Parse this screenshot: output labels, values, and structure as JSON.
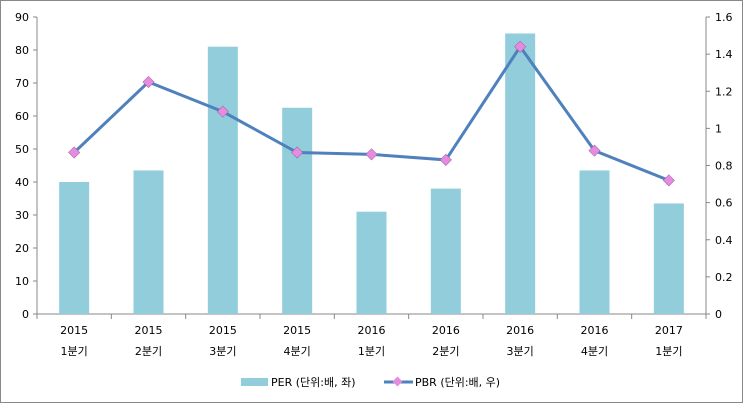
{
  "chart_data": {
    "type": "bar+line",
    "categories": [
      [
        "2015",
        "1분기"
      ],
      [
        "2015",
        "2분기"
      ],
      [
        "2015",
        "3분기"
      ],
      [
        "2015",
        "4분기"
      ],
      [
        "2016",
        "1분기"
      ],
      [
        "2016",
        "2분기"
      ],
      [
        "2016",
        "3분기"
      ],
      [
        "2016",
        "4분기"
      ],
      [
        "2017",
        "1분기"
      ]
    ],
    "series": [
      {
        "name": "PER (단위:배, 좌)",
        "type": "bar",
        "axis": "left",
        "color": "#92CDDC",
        "values": [
          40,
          43.5,
          81,
          62.5,
          31,
          38,
          85,
          43.5,
          33.5
        ]
      },
      {
        "name": "PBR (단위:배, 우)",
        "type": "line",
        "axis": "right",
        "color": "#4F81BD",
        "marker_color": "#E58BE0",
        "values": [
          0.87,
          1.25,
          1.09,
          0.87,
          0.86,
          0.83,
          1.44,
          0.88,
          0.72
        ]
      }
    ],
    "left_axis": {
      "min": 0,
      "max": 90,
      "step": 10,
      "ticks": [
        "0",
        "10",
        "20",
        "30",
        "40",
        "50",
        "60",
        "70",
        "80",
        "90"
      ]
    },
    "right_axis": {
      "min": 0,
      "max": 1.6,
      "step": 0.2,
      "ticks": [
        "0",
        "0.2",
        "0.4",
        "0.6",
        "0.8",
        "1",
        "1.2",
        "1.4",
        "1.6"
      ]
    },
    "legend_position": "bottom",
    "grid": false
  }
}
